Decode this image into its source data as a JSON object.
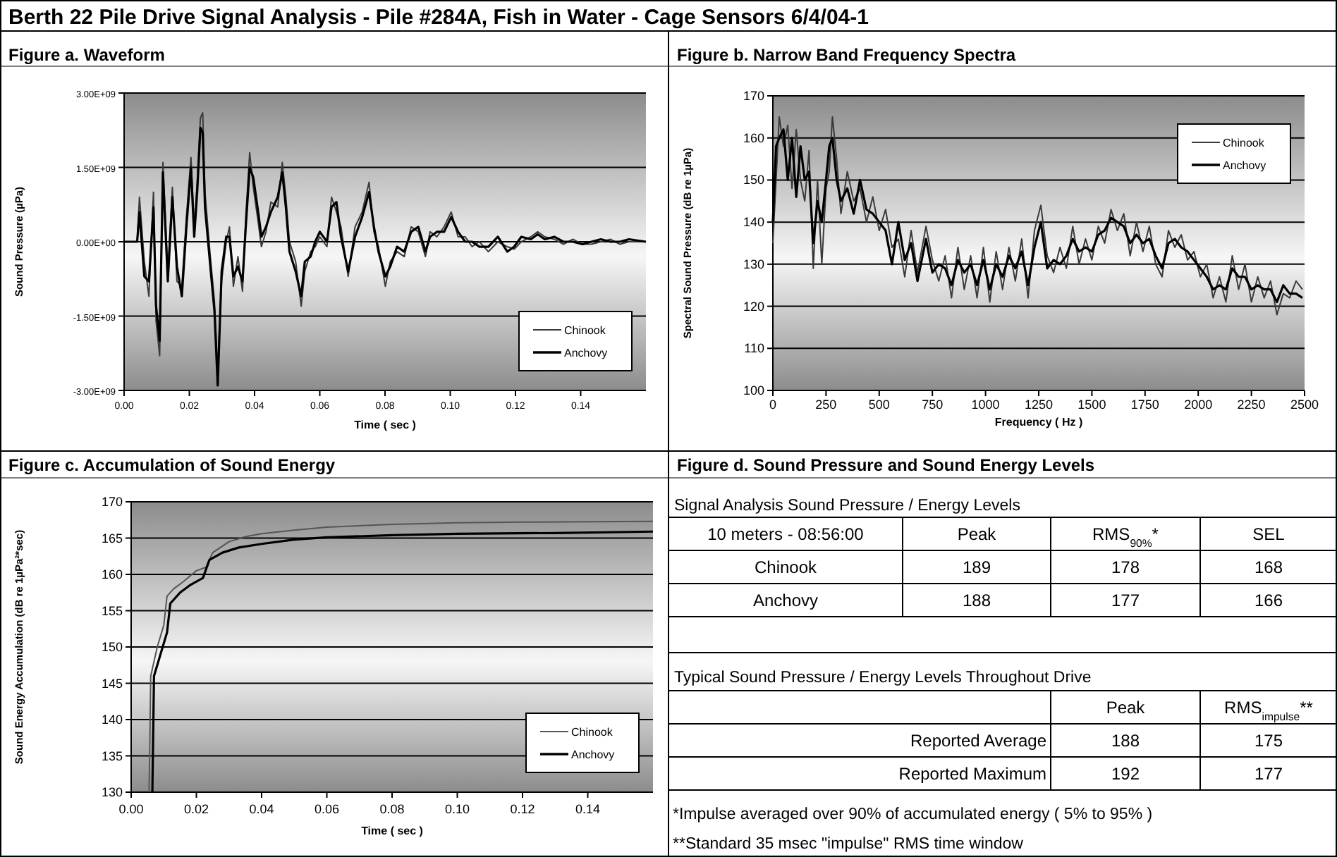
{
  "chart_data": [
    {
      "type": "line",
      "title": "Berth 22 Pile Drive Signal Analysis - Pile #284A, Fish in Water - Cage Sensors 6/4/04-1",
      "subtitle": "Figure a. Waveform",
      "xlabel": "Time ( sec )",
      "ylabel": "Sound Pressure (µPa)",
      "x": [
        0,
        0.004,
        0.0047,
        0.0062,
        0.0076,
        0.009,
        0.0098,
        0.0109,
        0.0119,
        0.0134,
        0.0148,
        0.0162,
        0.0177,
        0.0191,
        0.0205,
        0.0215,
        0.0224,
        0.0234,
        0.0241,
        0.0248,
        0.0263,
        0.0277,
        0.0287,
        0.0299,
        0.0313,
        0.0323,
        0.0335,
        0.0349,
        0.0363,
        0.0373,
        0.0385,
        0.0396,
        0.0411,
        0.0421,
        0.0435,
        0.045,
        0.0471,
        0.0485,
        0.0496,
        0.0507,
        0.0526,
        0.0543,
        0.0554,
        0.0572,
        0.0586,
        0.06,
        0.0622,
        0.0636,
        0.0651,
        0.0665,
        0.0687,
        0.0708,
        0.073,
        0.0751,
        0.0766,
        0.078,
        0.0801,
        0.0816,
        0.0837,
        0.0859,
        0.088,
        0.0902,
        0.0924,
        0.0938,
        0.0959,
        0.0981,
        0.1003,
        0.1024,
        0.1046,
        0.1067,
        0.1089,
        0.1117,
        0.1146,
        0.1175,
        0.1196,
        0.1218,
        0.1247,
        0.1268,
        0.129,
        0.1319,
        0.1347,
        0.1376,
        0.1405,
        0.1433,
        0.1462,
        0.1491,
        0.152,
        0.1548,
        0.16
      ],
      "series": [
        {
          "name": "Chinook",
          "color": "#3a3a3a",
          "values": [
            0,
            0,
            900000000.0,
            -400000000.0,
            -1100000000.0,
            1000000000.0,
            -1600000000.0,
            -2300000000.0,
            1600000000.0,
            -600000000.0,
            1100000000.0,
            -800000000.0,
            -900000000.0,
            500000000.0,
            1700000000.0,
            300000000.0,
            1200000000.0,
            2500000000.0,
            2600000000.0,
            1000000000.0,
            -200000000.0,
            -1200000000.0,
            -2600000000.0,
            -800000000.0,
            0,
            300000000.0,
            -900000000.0,
            -300000000.0,
            -1000000000.0,
            500000000.0,
            1800000000.0,
            1100000000.0,
            400000000.0,
            -100000000.0,
            200000000.0,
            800000000.0,
            700000000.0,
            1600000000.0,
            900000000.0,
            0,
            -400000000.0,
            -1300000000.0,
            -600000000.0,
            -200000000.0,
            -100000000.0,
            100000000.0,
            -100000000.0,
            900000000.0,
            600000000.0,
            300000000.0,
            -700000000.0,
            300000000.0,
            600000000.0,
            1200000000.0,
            200000000.0,
            -100000000.0,
            -900000000.0,
            -400000000.0,
            -200000000.0,
            -300000000.0,
            300000000.0,
            200000000.0,
            -300000000.0,
            200000000.0,
            100000000.0,
            300000000.0,
            600000000.0,
            100000000.0,
            100000000.0,
            -100000000.0,
            0,
            -200000000.0,
            0,
            -100000000.0,
            -150000000.0,
            0,
            100000000.0,
            200000000.0,
            100000000.0,
            50000000.0,
            -50000000.0,
            50000000.0,
            -50000000.0,
            -50000000.0,
            0,
            50000000.0,
            -50000000.0,
            0,
            0
          ]
        },
        {
          "name": "Anchovy",
          "color": "#000000",
          "values": [
            0,
            0,
            600000000.0,
            -700000000.0,
            -800000000.0,
            700000000.0,
            -1300000000.0,
            -2000000000.0,
            1400000000.0,
            -800000000.0,
            900000000.0,
            -500000000.0,
            -1100000000.0,
            300000000.0,
            1500000000.0,
            100000000.0,
            1000000000.0,
            2300000000.0,
            2200000000.0,
            700000000.0,
            -400000000.0,
            -1400000000.0,
            -2900000000.0,
            -600000000.0,
            100000000.0,
            100000000.0,
            -700000000.0,
            -500000000.0,
            -800000000.0,
            300000000.0,
            1500000000.0,
            1300000000.0,
            600000000.0,
            100000000.0,
            300000000.0,
            600000000.0,
            900000000.0,
            1400000000.0,
            700000000.0,
            -200000000.0,
            -600000000.0,
            -1100000000.0,
            -400000000.0,
            -300000000.0,
            0,
            200000000.0,
            0,
            700000000.0,
            800000000.0,
            100000000.0,
            -600000000.0,
            100000000.0,
            500000000.0,
            1000000000.0,
            300000000.0,
            -200000000.0,
            -700000000.0,
            -500000000.0,
            -100000000.0,
            -200000000.0,
            200000000.0,
            300000000.0,
            -200000000.0,
            100000000.0,
            200000000.0,
            200000000.0,
            500000000.0,
            200000000.0,
            0,
            0,
            -100000000.0,
            -100000000.0,
            100000000.0,
            -200000000.0,
            -100000000.0,
            100000000.0,
            50000000.0,
            150000000.0,
            50000000.0,
            100000000.0,
            0,
            0,
            -50000000.0,
            0,
            50000000.0,
            0,
            0,
            50000000.0,
            0
          ]
        }
      ],
      "xlim": [
        0,
        0.16
      ],
      "xticks": [
        {
          "value": 0,
          "label": "0.00"
        },
        {
          "value": 0.02,
          "label": "0.02"
        },
        {
          "value": 0.04,
          "label": "0.04"
        },
        {
          "value": 0.06,
          "label": "0.06"
        },
        {
          "value": 0.08,
          "label": "0.08"
        },
        {
          "value": 0.1,
          "label": "0.10"
        },
        {
          "value": 0.12,
          "label": "0.12"
        },
        {
          "value": 0.14,
          "label": "0.14"
        }
      ],
      "ylim": [
        -3000000000.0,
        3000000000.0
      ],
      "yticks": [
        {
          "value": -3000000000.0,
          "label": "-3.00E+09"
        },
        {
          "value": -1500000000.0,
          "label": "-1.50E+09"
        },
        {
          "value": 0,
          "label": "0.00E+00"
        },
        {
          "value": 1500000000.0,
          "label": "1.50E+09"
        },
        {
          "value": 3000000000.0,
          "label": "3.00E+09"
        }
      ],
      "grid": "y",
      "legend": "bottom right",
      "marker": "none",
      "line_style": "solid"
    },
    {
      "type": "line",
      "title": "Figure b. Narrow Band Frequency Spectra",
      "xlabel": "Frequency ( Hz )",
      "ylabel": "Spectral Sound Pressure (dB re 1µPa)",
      "x": [
        0,
        15,
        30,
        50,
        70,
        90,
        110,
        130,
        150,
        170,
        190,
        210,
        230,
        250,
        265,
        280,
        300,
        320,
        350,
        380,
        410,
        440,
        470,
        500,
        530,
        560,
        590,
        620,
        650,
        680,
        720,
        750,
        780,
        810,
        840,
        870,
        900,
        930,
        960,
        990,
        1020,
        1050,
        1080,
        1110,
        1140,
        1170,
        1200,
        1230,
        1260,
        1290,
        1320,
        1350,
        1380,
        1410,
        1440,
        1470,
        1500,
        1530,
        1560,
        1590,
        1620,
        1650,
        1680,
        1710,
        1740,
        1770,
        1800,
        1830,
        1860,
        1890,
        1920,
        1950,
        1980,
        2010,
        2040,
        2070,
        2100,
        2130,
        2160,
        2190,
        2220,
        2250,
        2280,
        2310,
        2340,
        2370,
        2400,
        2430,
        2460,
        2490
      ],
      "series": [
        {
          "name": "Chinook",
          "color": "#3a3a3a",
          "values": [
            135,
            150,
            165,
            158,
            163,
            148,
            162,
            150,
            145,
            157,
            129,
            150,
            130,
            148,
            152,
            165,
            155,
            142,
            152,
            145,
            148,
            140,
            146,
            138,
            143,
            134,
            136,
            127,
            138,
            128,
            139,
            131,
            126,
            132,
            122,
            134,
            124,
            132,
            122,
            134,
            121,
            133,
            124,
            134,
            126,
            136,
            122,
            138,
            144,
            132,
            128,
            134,
            129,
            139,
            130,
            136,
            131,
            139,
            135,
            143,
            138,
            142,
            132,
            140,
            133,
            139,
            130,
            127,
            138,
            134,
            137,
            131,
            133,
            127,
            130,
            122,
            127,
            121,
            132,
            124,
            130,
            121,
            127,
            122,
            126,
            118,
            123,
            122,
            126,
            124
          ]
        },
        {
          "name": "Anchovy",
          "color": "#000000",
          "values": [
            140,
            158,
            160,
            162,
            150,
            160,
            146,
            158,
            150,
            152,
            135,
            145,
            140,
            150,
            158,
            160,
            150,
            145,
            148,
            142,
            150,
            143,
            142,
            140,
            138,
            130,
            140,
            131,
            135,
            126,
            136,
            128,
            130,
            129,
            125,
            131,
            128,
            130,
            125,
            131,
            124,
            130,
            127,
            132,
            129,
            133,
            125,
            134,
            140,
            129,
            131,
            130,
            132,
            136,
            133,
            134,
            133,
            137,
            138,
            141,
            140,
            139,
            135,
            137,
            135,
            136,
            132,
            129,
            135,
            136,
            134,
            133,
            131,
            129,
            127,
            124,
            125,
            124,
            129,
            127,
            127,
            124,
            125,
            124,
            124,
            121,
            125,
            123,
            123,
            122
          ]
        }
      ],
      "xlim": [
        0,
        2500
      ],
      "xticks": [
        0,
        250,
        500,
        750,
        1000,
        1250,
        1500,
        1750,
        2000,
        2250,
        2500
      ],
      "ylim": [
        100,
        170
      ],
      "yticks": [
        100,
        110,
        120,
        130,
        140,
        150,
        160,
        170
      ],
      "grid": "y",
      "legend": "top right",
      "marker": "none",
      "line_style": "solid"
    },
    {
      "type": "line",
      "title": "Figure c. Accumulation of Sound Energy",
      "xlabel": "Time ( sec )",
      "ylabel": "Sound Energy Accumulation (dB re 1µPa²*sec)",
      "series": [
        {
          "name": "Chinook",
          "color": "#555555",
          "x": [
            0.0055,
            0.006,
            0.008,
            0.01,
            0.011,
            0.013,
            0.016,
            0.02,
            0.023,
            0.025,
            0.03,
            0.035,
            0.04,
            0.05,
            0.06,
            0.08,
            0.1,
            0.12,
            0.16
          ],
          "values": [
            130,
            146,
            150,
            153,
            157,
            158,
            159,
            160.5,
            161,
            163,
            164.5,
            165.2,
            165.6,
            166.1,
            166.5,
            166.9,
            167.1,
            167.2,
            167.3
          ]
        },
        {
          "name": "Anchovy",
          "color": "#000000",
          "x": [
            0.0065,
            0.007,
            0.009,
            0.011,
            0.012,
            0.015,
            0.018,
            0.022,
            0.024,
            0.028,
            0.033,
            0.04,
            0.05,
            0.06,
            0.08,
            0.1,
            0.13,
            0.16
          ],
          "values": [
            130,
            146,
            149,
            152,
            156,
            157.5,
            158.5,
            159.5,
            162,
            163,
            163.7,
            164.2,
            164.8,
            165.1,
            165.4,
            165.6,
            165.7,
            165.9
          ]
        }
      ],
      "xlim": [
        0,
        0.16
      ],
      "xticks": [
        {
          "value": 0,
          "label": "0.00"
        },
        {
          "value": 0.02,
          "label": "0.02"
        },
        {
          "value": 0.04,
          "label": "0.04"
        },
        {
          "value": 0.06,
          "label": "0.06"
        },
        {
          "value": 0.08,
          "label": "0.08"
        },
        {
          "value": 0.1,
          "label": "0.10"
        },
        {
          "value": 0.12,
          "label": "0.12"
        },
        {
          "value": 0.14,
          "label": "0.14"
        }
      ],
      "ylim": [
        130,
        170
      ],
      "yticks": [
        130,
        135,
        140,
        145,
        150,
        155,
        160,
        165,
        170
      ],
      "grid": "y",
      "legend": "bottom right",
      "marker": "none",
      "line_style": "solid"
    },
    {
      "type": "other",
      "title": "Figure d. Sound Pressure and Sound Energy Levels",
      "annotations": [
        "Signal Analysis Sound Pressure / Energy Levels",
        "10 meters - 08:56:00",
        "Peak",
        "RMS$_{90%}$*",
        "SEL",
        "Chinook",
        "189",
        "178",
        "168",
        "Anchovy",
        "188",
        "177",
        "166",
        "Typical Sound Pressure / Energy Levels Throughout Drive",
        "Peak",
        "RMS$_{impulse}$**",
        "Reported Average",
        "188",
        "175",
        "Reported Maximum",
        "192",
        "177",
        "*Impulse averaged over 90% of accumulated energy ( 5% to 95% )",
        "**Standard 35 msec \"impulse\" RMS time window"
      ]
    }
  ]
}
